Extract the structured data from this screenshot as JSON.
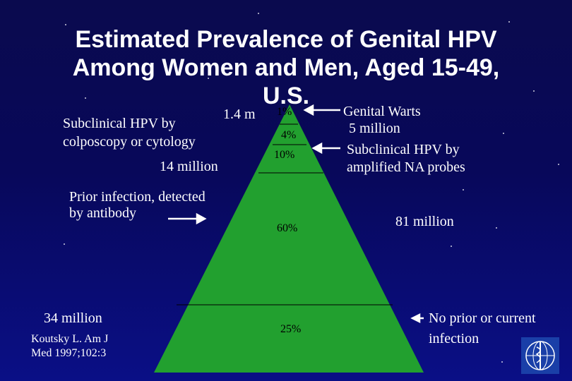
{
  "title": {
    "line1": "Estimated Prevalence of Genital HPV",
    "line2": "Among Women and Men, Aged 15-49,",
    "line3": "U.S."
  },
  "left": {
    "subclinical_line1": "Subclinical HPV by",
    "subclinical_line2": "colposcopy or cytology",
    "subclinical_count": "14 million",
    "top_count": "1.4 m",
    "prior_line1": "Prior infection, detected",
    "prior_line2": "by antibody",
    "bottom_count": "34 million",
    "citation_line1": "Koutsky L.  Am J",
    "citation_line2": "Med 1997;102:3"
  },
  "pyramid": {
    "pct_top": "1%",
    "pct_4": "4%",
    "pct_10": "10%",
    "pct_60": "60%",
    "pct_25": "25%",
    "color": "#22a02f"
  },
  "right": {
    "warts_label": "Genital Warts",
    "warts_count": "5 million",
    "amplified_line1": "Subclinical HPV by",
    "amplified_line2": "amplified NA probes",
    "total_count": "81 million",
    "no_infection_line1": "No prior or current",
    "no_infection_line2": "infection"
  }
}
